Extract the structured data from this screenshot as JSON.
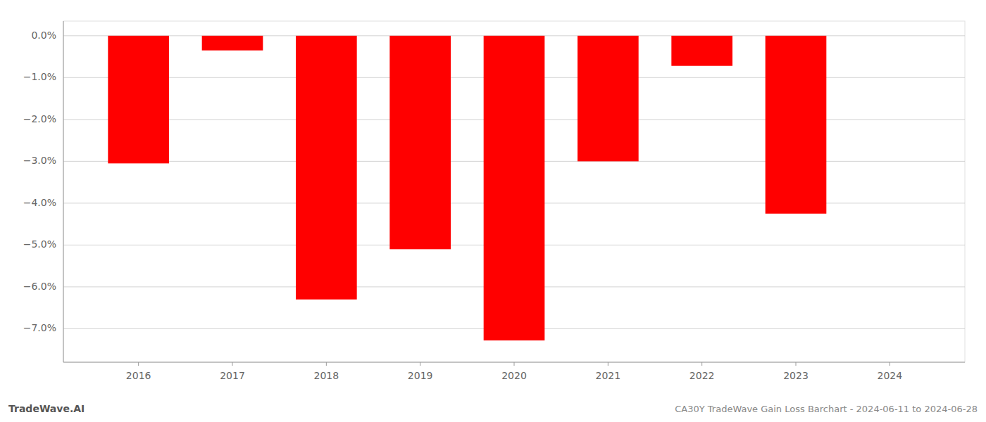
{
  "chart_data": {
    "type": "bar",
    "title": "CA30Y TradeWave Gain Loss Barchart - 2024-06-11 to 2024-06-28",
    "annotations": [
      "TradeWave.AI"
    ],
    "x": [
      2016,
      2017,
      2018,
      2019,
      2020,
      2021,
      2022,
      2023
    ],
    "values": [
      -3.05,
      -0.35,
      -6.3,
      -5.1,
      -7.28,
      -3.0,
      -0.72,
      -4.25
    ],
    "color": "#ff0000",
    "xlim": [
      2015.2,
      2024.8
    ],
    "xticks": [
      2016,
      2017,
      2018,
      2019,
      2020,
      2021,
      2022,
      2023,
      2024
    ],
    "ylim": [
      -7.8,
      0.35
    ],
    "yticks": [
      {
        "value": 0.0,
        "label": "0.0%"
      },
      {
        "value": -1.0,
        "label": "−1.0%"
      },
      {
        "value": -2.0,
        "label": "−2.0%"
      },
      {
        "value": -3.0,
        "label": "−3.0%"
      },
      {
        "value": -4.0,
        "label": "−4.0%"
      },
      {
        "value": -5.0,
        "label": "−5.0%"
      },
      {
        "value": -6.0,
        "label": "−6.0%"
      },
      {
        "value": -7.0,
        "label": "−7.0%"
      }
    ],
    "grid": true
  }
}
